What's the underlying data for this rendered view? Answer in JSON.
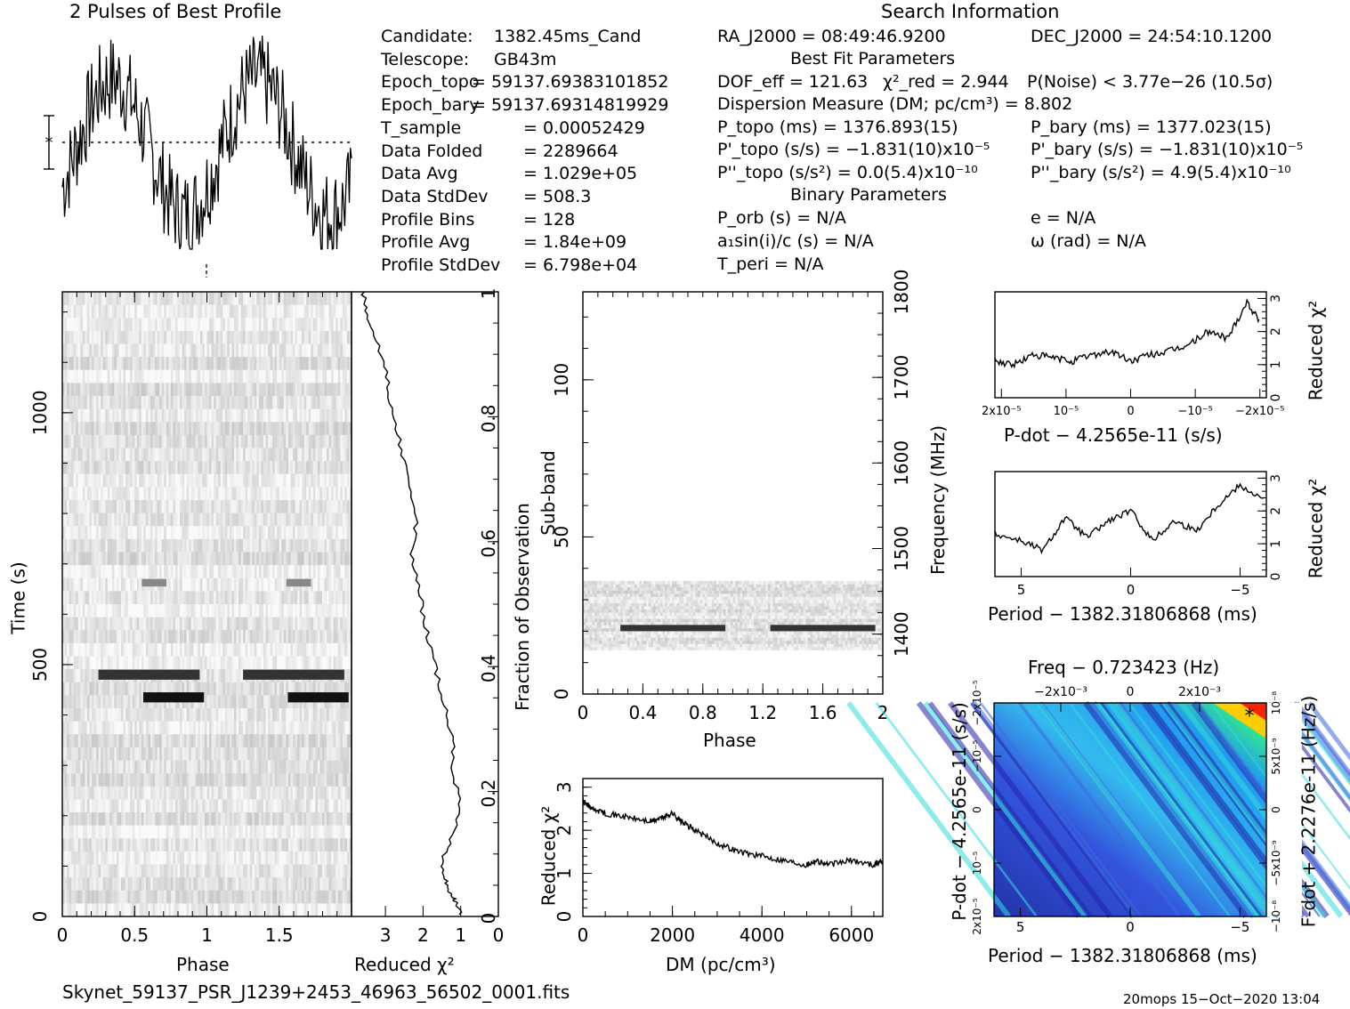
{
  "profile": {
    "title": "2 Pulses of Best Profile"
  },
  "search": {
    "title": "Search Information",
    "col1": [
      {
        "k": "Candidate:",
        "v": "1382.45ms_Cand"
      },
      {
        "k": "Telescope:",
        "v": "GB43m"
      },
      {
        "k": "Epoch_topo",
        "v": "= 59137.69383101852"
      },
      {
        "k": "Epoch_bary",
        "v": "= 59137.69314819929"
      },
      {
        "k": "T_sample",
        "v": "0.00052429"
      },
      {
        "k": "Data Folded",
        "v": "2289664"
      },
      {
        "k": "Data Avg",
        "v": "1.029e+05"
      },
      {
        "k": "Data StdDev",
        "v": "508.3"
      },
      {
        "k": "Profile Bins",
        "v": "128"
      },
      {
        "k": "Profile Avg",
        "v": "1.84e+09"
      },
      {
        "k": "Profile StdDev",
        "v": "6.798e+04"
      }
    ],
    "ra": "RA_J2000 = 08:49:46.9200",
    "dec": "DEC_J2000 = 24:54:10.1200",
    "best_fit_title": "Best Fit Parameters",
    "dof": "DOF_eff = 121.63",
    "chi2": "χ²_red = 2.944",
    "pnoise": "P(Noise) < 3.77e−26   (10.5σ)",
    "dm": "Dispersion Measure (DM; pc/cm³) = 8.802",
    "ptopo": "P_topo (ms) =   1376.893(15)",
    "pbary": "P_bary (ms) =   1377.023(15)",
    "pdtopo": "P'_topo (s/s) = −1.831(10)x10⁻⁵",
    "pdbary": "P'_bary (s/s) = −1.831(10)x10⁻⁵",
    "pddtopo": "P''_topo (s/s²) = 0.0(5.4)x10⁻¹⁰",
    "pddbary": "P''_bary (s/s²) =   4.9(5.4)x10⁻¹⁰",
    "binary_title": "Binary Parameters",
    "porb": "P_orb (s) = N/A",
    "e": "e = N/A",
    "a1": "a₁sin(i)/c (s) = N/A",
    "omega": "ω (rad) = N/A",
    "tperi": "T_peri = N/A"
  },
  "chart_data": [
    {
      "id": "time-phase",
      "type": "heatmap",
      "xlabel": "Phase",
      "ylabel": "Time (s)",
      "xticks": [
        "0",
        "0.5",
        "1",
        "1.5"
      ],
      "yticks": [
        "0",
        "500",
        "1000"
      ],
      "xlim": [
        0,
        2
      ],
      "ylim": [
        0,
        1240
      ],
      "features": [
        {
          "phase": [
            0.25,
            0.95
          ],
          "time": [
            470,
            490
          ],
          "note": "strong band"
        },
        {
          "phase": [
            1.25,
            1.95
          ],
          "time": [
            470,
            490
          ]
        },
        {
          "phase": [
            0.56,
            0.98
          ],
          "time": [
            425,
            445
          ]
        },
        {
          "phase": [
            1.56,
            1.98
          ],
          "time": [
            425,
            445
          ]
        },
        {
          "phase": [
            0.55,
            0.72
          ],
          "time": [
            655,
            670
          ]
        },
        {
          "phase": [
            1.55,
            1.72
          ],
          "time": [
            655,
            670
          ]
        }
      ]
    },
    {
      "id": "fraction-chi2",
      "type": "line",
      "xlabel": "Reduced χ²",
      "ylabel": "Fraction of Observation",
      "xticks": [
        "3",
        "2",
        "1",
        "0"
      ],
      "yticks": [
        "0",
        "0.2",
        "0.4",
        "0.6",
        "0.8",
        "1"
      ],
      "series": [
        {
          "x": [
            3.6,
            3.5,
            3.3,
            3.0,
            2.9,
            2.7,
            2.5,
            2.3,
            2.2,
            2.3,
            2.1,
            2.0,
            1.8,
            1.6,
            1.4,
            1.2,
            1.2,
            1.0,
            1.2,
            1.5,
            1.4,
            1.3,
            1.2,
            1.1,
            1.0
          ],
          "y": [
            1.0,
            0.97,
            0.93,
            0.88,
            0.83,
            0.78,
            0.73,
            0.68,
            0.63,
            0.58,
            0.53,
            0.48,
            0.43,
            0.38,
            0.33,
            0.28,
            0.23,
            0.18,
            0.13,
            0.09,
            0.06,
            0.04,
            0.03,
            0.02,
            0.0
          ]
        }
      ]
    },
    {
      "id": "subband-phase",
      "type": "heatmap",
      "xlabel": "Phase",
      "ylabel": "Sub-band",
      "y2label": "Frequency (MHz)",
      "xticks": [
        "0",
        "0.4",
        "0.8",
        "1.2",
        "1.6",
        "2"
      ],
      "yticks": [
        "0",
        "50",
        "100"
      ],
      "y2ticks": [
        "1400",
        "1500",
        "1600",
        "1700",
        "1800"
      ],
      "xlim": [
        0,
        2
      ],
      "ylim": [
        0,
        128
      ],
      "features": [
        {
          "phase": [
            0.25,
            0.95
          ],
          "subband": [
            20,
            22
          ]
        },
        {
          "phase": [
            1.25,
            1.95
          ],
          "subband": [
            20,
            22
          ]
        }
      ]
    },
    {
      "id": "dm-chi2",
      "type": "line",
      "xlabel": "DM (pc/cm³)",
      "ylabel": "Reduced χ²",
      "xticks": [
        "0",
        "2000",
        "4000",
        "6000"
      ],
      "yticks": [
        "0",
        "1",
        "2",
        "3"
      ],
      "xlim": [
        0,
        6700
      ],
      "ylim": [
        0,
        3.2
      ],
      "series": [
        {
          "x": [
            0,
            200,
            500,
            1000,
            1500,
            1800,
            2000,
            2200,
            2500,
            3000,
            3500,
            4000,
            4500,
            5000,
            5200,
            5500,
            6000,
            6500,
            6700
          ],
          "y": [
            2.7,
            2.5,
            2.4,
            2.3,
            2.2,
            2.3,
            2.4,
            2.2,
            2.0,
            1.7,
            1.5,
            1.4,
            1.3,
            1.2,
            1.3,
            1.2,
            1.3,
            1.2,
            1.3
          ]
        }
      ]
    },
    {
      "id": "pdot-chi2",
      "type": "line",
      "xlabel": "P-dot − 4.2565e-11 (s/s)",
      "ylabel": "Reduced χ²",
      "xticks": [
        "2x10⁻⁵",
        "10⁻⁵",
        "0",
        "−10⁻⁵",
        "−2x10⁻⁵"
      ],
      "yticks": [
        "0",
        "1",
        "2",
        "3"
      ],
      "ylim": [
        0,
        3.2
      ],
      "series": [
        {
          "x": [
            2.1,
            1.8,
            1.5,
            1.2,
            0.9,
            0.6,
            0.3,
            0,
            -0.3,
            -0.6,
            -0.9,
            -1.2,
            -1.5,
            -1.8,
            -2.0
          ],
          "y": [
            1.1,
            1.0,
            1.3,
            1.2,
            1.1,
            1.3,
            1.4,
            1.1,
            1.3,
            1.4,
            1.6,
            2.0,
            1.8,
            2.9,
            2.3
          ]
        }
      ]
    },
    {
      "id": "period-chi2",
      "type": "line",
      "xlabel": "Period − 1382.31806868 (ms)",
      "ylabel": "Reduced χ²",
      "xticks": [
        "5",
        "0",
        "−5"
      ],
      "yticks": [
        "0",
        "1",
        "2",
        "3"
      ],
      "ylim": [
        0,
        3.2
      ],
      "series": [
        {
          "x": [
            6.2,
            5,
            4,
            3,
            2,
            1,
            0,
            -1,
            -2,
            -3,
            -4,
            -5,
            -6.2
          ],
          "y": [
            1.3,
            1.1,
            0.8,
            1.8,
            1.2,
            1.7,
            2.0,
            1.1,
            1.7,
            1.4,
            2.2,
            2.8,
            2.3
          ]
        }
      ]
    },
    {
      "id": "freq-fdot",
      "type": "heatmap",
      "title": "Freq − 0.723423 (Hz)",
      "xlabel": "Period − 1382.31806868 (ms)",
      "ylabel": "P-dot − 4.2565e-11 (s/s)",
      "y2label": "F-dot + 2.2276e-11 (Hz/s)",
      "xticks": [
        "5",
        "0",
        "−5"
      ],
      "x2ticks": [
        "−2x10⁻³",
        "0",
        "2x10⁻³"
      ],
      "yticks": [
        "2x10⁻⁵",
        "10⁻⁵",
        "0",
        "−10⁻⁵",
        "−2x10⁻⁵"
      ],
      "y2ticks": [
        "−10⁻⁸",
        "−5x10⁻⁹",
        "0",
        "5x10⁻⁹",
        "10⁻⁸"
      ],
      "colors": {
        "low": "#2222aa",
        "mid": "#3b6ae0",
        "high": "#33dddd",
        "peak": "#ff2200",
        "hot": "#ffcc00"
      }
    }
  ],
  "footer": {
    "filename": "Skynet_59137_PSR_J1239+2453_46963_56502_0001.fits",
    "stamp": "20mops 15−Oct−2020 13:04"
  }
}
